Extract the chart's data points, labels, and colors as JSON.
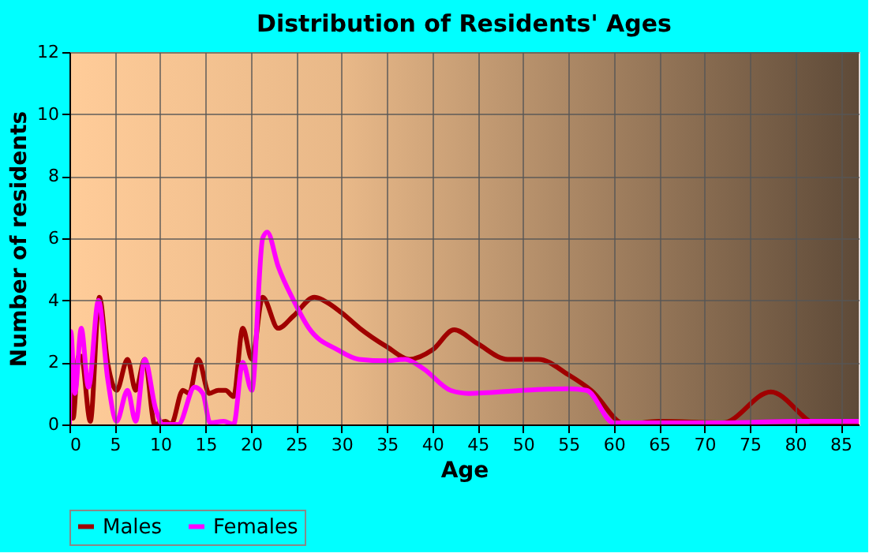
{
  "chart_data": {
    "type": "line",
    "title": "Distribution of Residents' Ages",
    "xlabel": "Age",
    "ylabel": "Number of residents",
    "xlim": [
      0,
      87
    ],
    "xticks": [
      0,
      5,
      10,
      15,
      20,
      25,
      30,
      35,
      40,
      45,
      50,
      55,
      60,
      65,
      70,
      75,
      80,
      85
    ],
    "ylim": [
      0,
      12
    ],
    "yticks": [
      0,
      2,
      4,
      6,
      8,
      10,
      12
    ],
    "grid": true,
    "legend": "bottom",
    "line_style": "solid",
    "marker": "none",
    "series": [
      {
        "name": "Males",
        "color": "#a00000",
        "x": [
          0,
          0.4,
          1,
          1.3,
          2.3,
          3.3,
          4.2,
          5.2,
          6.4,
          7.3,
          8.3,
          9.4,
          10.6,
          11.2,
          12.5,
          13.2,
          14.2,
          15.4,
          16.4,
          17.2,
          18.1,
          19.1,
          20.1,
          21.3,
          23,
          24.7,
          27,
          28,
          30,
          32,
          35,
          37.5,
          40,
          42.4,
          45,
          48.3,
          51.7,
          55,
          57.5,
          61.3,
          65,
          72,
          77.3,
          82.6,
          87
        ],
        "values": [
          2.1,
          0.2,
          2.2,
          2.2,
          0.1,
          4.1,
          2,
          1.1,
          2.1,
          1.1,
          2.1,
          0,
          0.1,
          0,
          1.1,
          1,
          2.1,
          1,
          1.1,
          1.1,
          0.9,
          3.1,
          2.1,
          4.1,
          3.1,
          3.5,
          4.1,
          4,
          3.6,
          3.1,
          2.5,
          2.1,
          2.4,
          3.05,
          2.6,
          2.1,
          2.1,
          1.6,
          1.1,
          0,
          0.1,
          0.05,
          1.05,
          0,
          0.05
        ]
      },
      {
        "name": "Females",
        "color": "#ff00ff",
        "x": [
          0,
          0.15,
          0.6,
          1.3,
          2.1,
          3.2,
          4.2,
          5.2,
          6.4,
          7.3,
          8.3,
          9.5,
          10.3,
          12,
          13.8,
          14.7,
          15.5,
          17,
          18.1,
          19.1,
          20.1,
          21.3,
          21.8,
          23,
          24.7,
          26.4,
          29.6,
          31.9,
          35,
          37,
          39,
          42,
          44,
          50,
          55,
          57,
          60,
          65,
          72,
          80,
          87
        ],
        "values": [
          0,
          3,
          1,
          3.1,
          1.2,
          4,
          1.5,
          0.1,
          1.1,
          0.1,
          2.1,
          0.5,
          0,
          0,
          1.2,
          1,
          0.05,
          0.1,
          0,
          2,
          1.1,
          6,
          6.2,
          5.1,
          4,
          3.1,
          2.4,
          2.1,
          2.05,
          2.1,
          1.8,
          1.1,
          1,
          1.1,
          1.15,
          1.1,
          0.05,
          0.05,
          0.05,
          0.1,
          0.1
        ]
      }
    ]
  }
}
